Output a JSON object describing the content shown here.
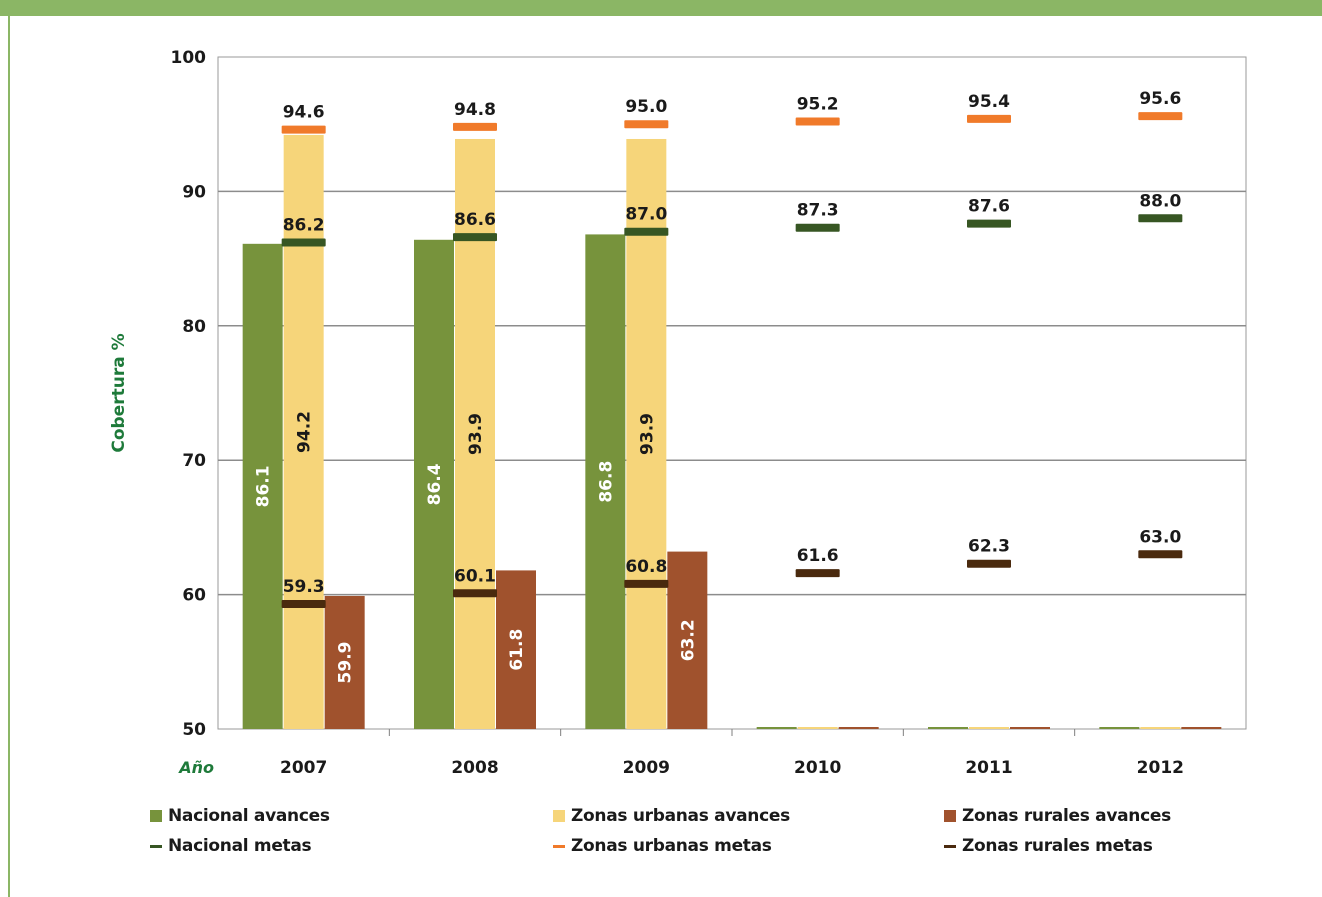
{
  "chart_data": {
    "type": "bar",
    "ylabel": "Cobertura %",
    "xlabel": "Año",
    "ylim": [
      50,
      100
    ],
    "yticks": [
      "50",
      "60",
      "70",
      "80",
      "90",
      "100"
    ],
    "categories": [
      "2007",
      "2008",
      "2009",
      "2010",
      "2011",
      "2012"
    ],
    "grid": true,
    "series": [
      {
        "name": "Nacional avances",
        "kind": "bar",
        "color": "#77933c",
        "values": [
          86.1,
          86.4,
          86.8,
          null,
          null,
          null
        ],
        "labels": [
          "86.1",
          "86.4",
          "86.8",
          "",
          "",
          ""
        ]
      },
      {
        "name": "Zonas urbanas avances",
        "kind": "bar",
        "color": "#f6d57a",
        "values": [
          94.2,
          93.9,
          93.9,
          null,
          null,
          null
        ],
        "labels": [
          "94.2",
          "93.9",
          "93.9",
          "",
          "",
          ""
        ]
      },
      {
        "name": "Zonas rurales avances",
        "kind": "bar",
        "color": "#a0522d",
        "values": [
          59.9,
          61.8,
          63.2,
          null,
          null,
          null
        ],
        "labels": [
          "59.9",
          "61.8",
          "63.2",
          "",
          "",
          ""
        ]
      },
      {
        "name": "Nacional metas",
        "kind": "marker",
        "color": "#375623",
        "values": [
          86.2,
          86.6,
          87.0,
          87.3,
          87.6,
          88.0
        ],
        "labels": [
          "86.2",
          "86.6",
          "87.0",
          "87.3",
          "87.6",
          "88.0"
        ]
      },
      {
        "name": "Zonas urbanas metas",
        "kind": "marker",
        "color": "#f07a2a",
        "values": [
          94.6,
          94.8,
          95.0,
          95.2,
          95.4,
          95.6
        ],
        "labels": [
          "94.6",
          "94.8",
          "95.0",
          "95.2",
          "95.4",
          "95.6"
        ]
      },
      {
        "name": "Zonas rurales metas",
        "kind": "marker",
        "color": "#4a2a0e",
        "values": [
          59.3,
          60.1,
          60.8,
          61.6,
          62.3,
          63.0
        ],
        "labels": [
          "59.3",
          "60.1",
          "60.8",
          "61.6",
          "62.3",
          "63.0"
        ]
      }
    ],
    "legend": {
      "placement": "bottom",
      "items": [
        {
          "label": "Nacional avances",
          "color": "#77933c",
          "shape": "square"
        },
        {
          "label": "Zonas urbanas avances",
          "color": "#f6d57a",
          "shape": "square"
        },
        {
          "label": "Zonas rurales avances",
          "color": "#a0522d",
          "shape": "square"
        },
        {
          "label": "Nacional metas",
          "color": "#375623",
          "shape": "line"
        },
        {
          "label": "Zonas urbanas metas",
          "color": "#f07a2a",
          "shape": "line"
        },
        {
          "label": "Zonas rurales metas",
          "color": "#4a2a0e",
          "shape": "line"
        }
      ]
    }
  }
}
